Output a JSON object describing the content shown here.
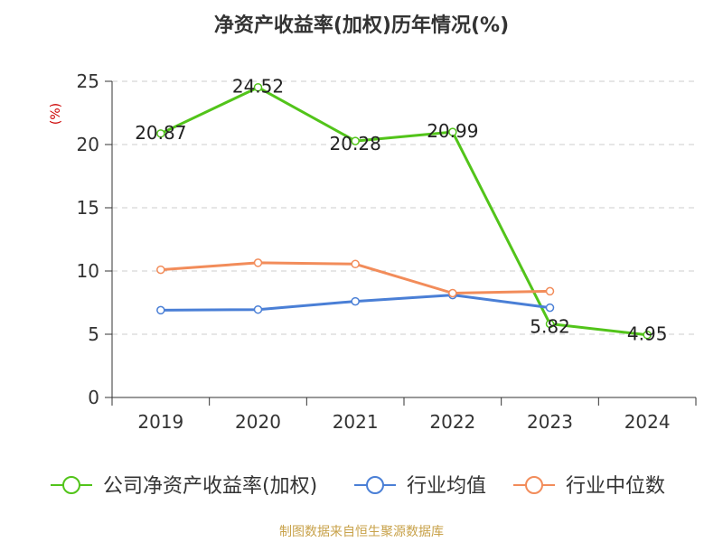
{
  "title": "净资产收益率(加权)历年情况(%)",
  "source_note": "制图数据来自恒生聚源数据库",
  "chart_data": {
    "type": "line",
    "categories": [
      "2019",
      "2020",
      "2021",
      "2022",
      "2023",
      "2024"
    ],
    "ylabel": "(%)",
    "ylim": [
      0,
      25
    ],
    "yticks": [
      "0",
      "5",
      "10",
      "15",
      "20",
      "25"
    ],
    "grid": true,
    "legend_position": "bottom",
    "series": [
      {
        "name": "公司净资产收益率(加权)",
        "color": "#52c41a",
        "values": [
          20.87,
          24.52,
          20.28,
          20.99,
          5.82,
          4.95
        ],
        "labels": [
          "20.87",
          "24.52",
          "20.28",
          "20.99",
          "5.82",
          "4.95"
        ]
      },
      {
        "name": "行业均值",
        "color": "#4a7fd6",
        "values": [
          6.9,
          6.95,
          7.6,
          8.1,
          7.1,
          null
        ]
      },
      {
        "name": "行业中位数",
        "color": "#f28c5a",
        "values": [
          10.1,
          10.65,
          10.55,
          8.25,
          8.4,
          null
        ]
      }
    ]
  }
}
